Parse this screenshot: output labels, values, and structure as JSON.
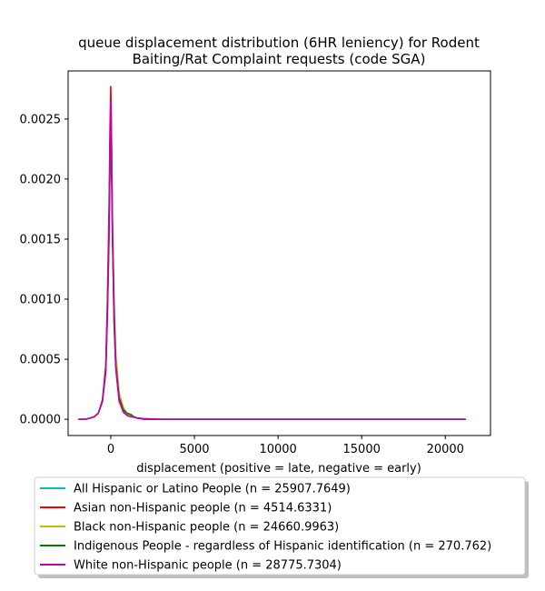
{
  "chart_data": {
    "type": "line",
    "title": "queue displacement distribution (6HR leniency) for Rodent\nBaiting/Rat Complaint  requests (code SGA)",
    "xlabel": "displacement (positive = late, negative = early)",
    "ylabel": "",
    "xlim": [
      -2550,
      22700
    ],
    "ylim": [
      -0.000135,
      0.0029
    ],
    "xticks": [
      0,
      5000,
      10000,
      15000,
      20000
    ],
    "xtick_labels": [
      "0",
      "5000",
      "10000",
      "15000",
      "20000"
    ],
    "yticks": [
      0.0,
      0.0005,
      0.001,
      0.0015,
      0.002,
      0.0025
    ],
    "ytick_labels": [
      "0.0000",
      "0.0005",
      "0.0010",
      "0.0015",
      "0.0020",
      "0.0025"
    ],
    "grid": false,
    "legend_position": "below",
    "series": [
      {
        "name": "All Hispanic or Latino People (n = 25907.7649)",
        "color": "#00bfbf",
        "x": [
          -1900,
          -1500,
          -1000,
          -750,
          -500,
          -300,
          -200,
          -100,
          -50,
          0,
          50,
          100,
          200,
          300,
          500,
          750,
          1000,
          1300,
          1600,
          2000,
          3000,
          5000,
          10000,
          15000,
          21200
        ],
        "y": [
          0.0,
          0.0,
          2e-05,
          5e-05,
          0.00015,
          0.0004,
          0.0009,
          0.0016,
          0.0022,
          0.00255,
          0.0022,
          0.0016,
          0.0009,
          0.00048,
          0.00018,
          7e-05,
          3e-05,
          2e-05,
          1e-05,
          5e-06,
          0.0,
          0.0,
          0.0,
          0.0,
          0.0
        ]
      },
      {
        "name": "Asian non-Hispanic people (n = 4514.6331)",
        "color": "#ff0000",
        "x": [
          -1900,
          -1500,
          -1000,
          -750,
          -500,
          -300,
          -200,
          -100,
          -50,
          0,
          50,
          100,
          200,
          300,
          500,
          750,
          1000,
          1300,
          1600,
          2000,
          3000,
          5000,
          10000,
          15000,
          21200
        ],
        "y": [
          0.0,
          0.0,
          2e-05,
          5e-05,
          0.00015,
          0.00045,
          0.001,
          0.0018,
          0.0024,
          0.00277,
          0.0023,
          0.0016,
          0.0008,
          0.00042,
          0.00015,
          6e-05,
          3e-05,
          2e-05,
          1e-05,
          5e-06,
          0.0,
          0.0,
          0.0,
          0.0,
          0.0
        ]
      },
      {
        "name": "Black non-Hispanic people (n = 24660.9963)",
        "color": "#bfbf00",
        "x": [
          -1900,
          -1500,
          -1000,
          -750,
          -500,
          -300,
          -200,
          -100,
          -50,
          0,
          50,
          100,
          200,
          300,
          500,
          750,
          1000,
          1300,
          1600,
          2000,
          3000,
          5000,
          10000,
          15000,
          21200
        ],
        "y": [
          0.0,
          0.0,
          2e-05,
          5e-05,
          0.00014,
          0.00038,
          0.00085,
          0.0015,
          0.0021,
          0.0025,
          0.0022,
          0.0017,
          0.001,
          0.00055,
          0.00022,
          0.0001,
          4e-05,
          2e-05,
          1e-05,
          5e-06,
          0.0,
          0.0,
          0.0,
          0.0,
          0.0
        ]
      },
      {
        "name": "Indigenous People - regardless of Hispanic identification (n = 270.762)",
        "color": "#008000",
        "x": [
          -1900,
          -1500,
          -1000,
          -750,
          -500,
          -300,
          -200,
          -100,
          -50,
          0,
          50,
          100,
          200,
          300,
          500,
          750,
          1000,
          1200,
          1400,
          1600,
          2000,
          3000,
          5000,
          10000,
          15000,
          21200
        ],
        "y": [
          0.0,
          0.0,
          2e-05,
          5e-05,
          0.00016,
          0.0004,
          0.0009,
          0.0016,
          0.0021,
          0.00235,
          0.002,
          0.0015,
          0.0008,
          0.00045,
          0.00018,
          8e-05,
          5e-05,
          4e-05,
          2e-05,
          1e-05,
          0.0,
          0.0,
          0.0,
          0.0,
          0.0,
          0.0
        ]
      },
      {
        "name": "White non-Hispanic people (n = 28775.7304)",
        "color": "#bf00bf",
        "x": [
          -1900,
          -1500,
          -1000,
          -750,
          -500,
          -300,
          -200,
          -100,
          -50,
          0,
          50,
          100,
          200,
          300,
          500,
          750,
          1000,
          1300,
          1600,
          2000,
          3000,
          5000,
          10000,
          15000,
          21200
        ],
        "y": [
          0.0,
          0.0,
          2e-05,
          5e-05,
          0.00015,
          0.0004,
          0.0009,
          0.0016,
          0.0022,
          0.00265,
          0.0022,
          0.0016,
          0.0009,
          0.00045,
          0.00016,
          6e-05,
          3e-05,
          2e-05,
          1e-05,
          5e-06,
          0.0,
          0.0,
          0.0,
          0.0,
          0.0
        ]
      }
    ]
  }
}
